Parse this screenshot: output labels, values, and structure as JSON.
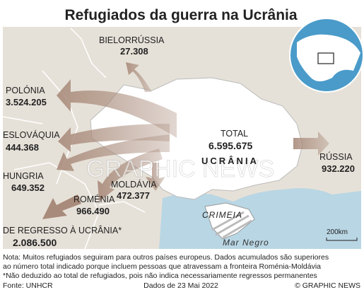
{
  "title": "Refugiados da guerra na Ucrânia",
  "countries": [
    {
      "name": "BIELORRÚSSIA",
      "value": "27.308"
    },
    {
      "name": "POLÓNIA",
      "value": "3.524.205"
    },
    {
      "name": "ESLOVÁQUIA",
      "value": "444.368"
    },
    {
      "name": "HUNGRIA",
      "value": "649.352"
    },
    {
      "name": "ROMÉNIA",
      "value": "966.490"
    },
    {
      "name": "MOLDÁVIA",
      "value": "472.377"
    },
    {
      "name": "RÚSSIA",
      "value": "932.220"
    }
  ],
  "total": {
    "label": "TOTAL",
    "value": "6.595.675"
  },
  "returned": {
    "label": "DE REGRESSO À UCRÂNIA*",
    "value": "2.086.500"
  },
  "ukraine": "UCRÂNIA",
  "crimea": "CRIMEIA",
  "sea": "Mar Negro",
  "scale": "200km",
  "watermark": "GRAPHIC NEWS",
  "notes": [
    "Nota: Muitos refugiados seguiram para outros países europeus. Dados acumulados são superiores",
    "ao número total indicado porque incluem pessoas que atravessam a fronteira Roménia-Moldávia",
    "*Não deduzido ao total de refugiados, pois não indica necessariamente regressos permanentes"
  ],
  "footer": {
    "source": "Fonte: UNHCR",
    "date": "Dados de 23 Mai 2022",
    "credit": "© GRAPHIC NEWS"
  }
}
